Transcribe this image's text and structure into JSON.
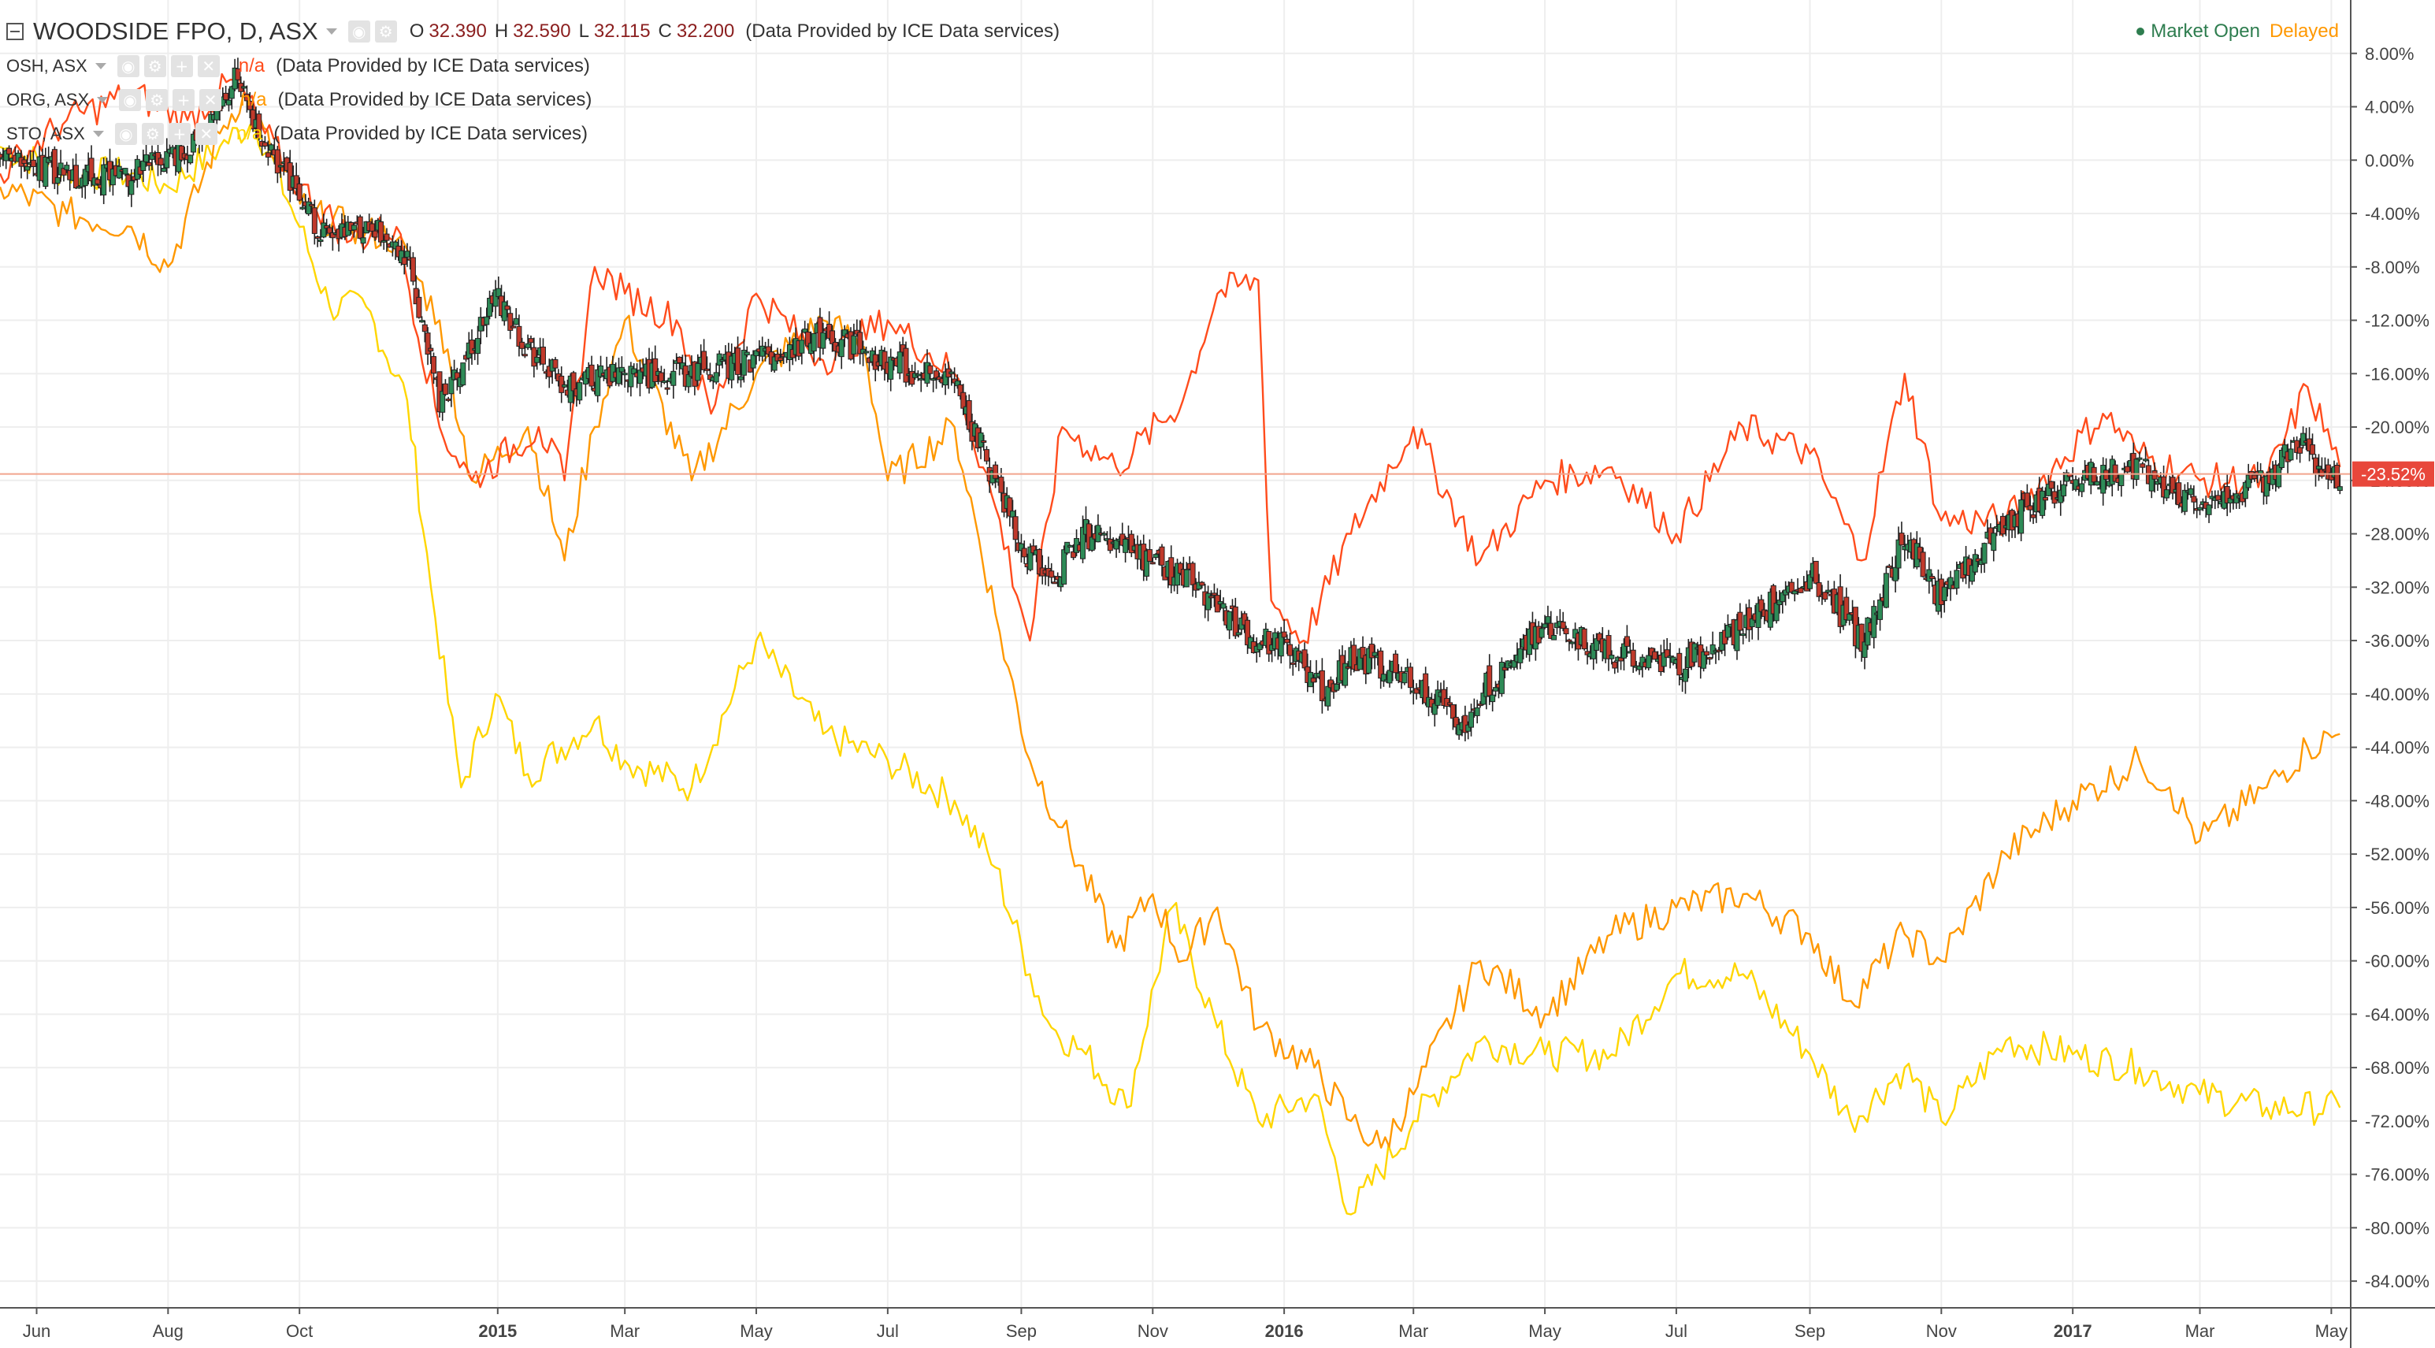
{
  "header": {
    "title": "WOODSIDE FPO, D, ASX",
    "ohlc": {
      "o_label": "O",
      "o": "32.390",
      "h_label": "H",
      "h": "32.590",
      "l_label": "L",
      "l": "32.115",
      "c_label": "C",
      "c": "32.200"
    },
    "provider": "(Data Provided by ICE Data services)",
    "status_open": "Market Open",
    "status_delayed": "Delayed"
  },
  "overlays": [
    {
      "label": "OSH, ASX",
      "value": "n/a",
      "provider": "(Data Provided by ICE Data services)",
      "color": "#ff4c1c"
    },
    {
      "label": "ORG, ASX",
      "value": "n/a",
      "provider": "(Data Provided by ICE Data services)",
      "color": "#ff9800"
    },
    {
      "label": "STO, ASX",
      "value": "n/a",
      "provider": "(Data Provided by ICE Data services)",
      "color": "#ffd600"
    }
  ],
  "price_tag": "-23.52%",
  "colors": {
    "up": "#2e8b57",
    "down": "#c0392b",
    "grid": "#eeeeee",
    "axis": "#555555",
    "tag": "#e8473b"
  },
  "chart_data": {
    "type": "line",
    "yscale": "percent change",
    "ylim": [
      -86,
      12
    ],
    "xlim": [
      "2014-05-15",
      "2017-05-10"
    ],
    "y_ticks": [
      "8.00%",
      "4.00%",
      "0.00%",
      "-4.00%",
      "-8.00%",
      "-12.00%",
      "-16.00%",
      "-20.00%",
      "-24.00%",
      "-28.00%",
      "-32.00%",
      "-36.00%",
      "-40.00%",
      "-44.00%",
      "-48.00%",
      "-52.00%",
      "-56.00%",
      "-60.00%",
      "-64.00%",
      "-68.00%",
      "-72.00%",
      "-76.00%",
      "-80.00%",
      "-84.00%"
    ],
    "x_ticks": [
      {
        "label": "Jun",
        "date": "2014-06-01",
        "bold": false
      },
      {
        "label": "Aug",
        "date": "2014-08-01",
        "bold": false
      },
      {
        "label": "Oct",
        "date": "2014-10-01",
        "bold": false
      },
      {
        "label": "2015",
        "date": "2015-01-01",
        "bold": true
      },
      {
        "label": "Mar",
        "date": "2015-03-01",
        "bold": false
      },
      {
        "label": "May",
        "date": "2015-05-01",
        "bold": false
      },
      {
        "label": "Jul",
        "date": "2015-07-01",
        "bold": false
      },
      {
        "label": "Sep",
        "date": "2015-09-01",
        "bold": false
      },
      {
        "label": "Nov",
        "date": "2015-11-01",
        "bold": false
      },
      {
        "label": "2016",
        "date": "2016-01-01",
        "bold": true
      },
      {
        "label": "Mar",
        "date": "2016-03-01",
        "bold": false
      },
      {
        "label": "May",
        "date": "2016-05-01",
        "bold": false
      },
      {
        "label": "Jul",
        "date": "2016-07-01",
        "bold": false
      },
      {
        "label": "Sep",
        "date": "2016-09-01",
        "bold": false
      },
      {
        "label": "Nov",
        "date": "2016-11-01",
        "bold": false
      },
      {
        "label": "2017",
        "date": "2017-01-01",
        "bold": true
      },
      {
        "label": "Mar",
        "date": "2017-03-01",
        "bold": false
      },
      {
        "label": "May",
        "date": "2017-05-01",
        "bold": false
      }
    ],
    "current_value": -23.52,
    "series": [
      {
        "name": "WOODSIDE FPO",
        "kind": "candles",
        "color_up": "#2e8b57",
        "color_down": "#c0392b",
        "points": [
          [
            "2014-05-15",
            0
          ],
          [
            "2014-06-15",
            -1
          ],
          [
            "2014-07-15",
            -1
          ],
          [
            "2014-08-10",
            1
          ],
          [
            "2014-08-25",
            4
          ],
          [
            "2014-09-01",
            6
          ],
          [
            "2014-09-15",
            1
          ],
          [
            "2014-10-01",
            -3
          ],
          [
            "2014-10-15",
            -6
          ],
          [
            "2014-11-01",
            -5
          ],
          [
            "2014-11-20",
            -7
          ],
          [
            "2014-12-05",
            -18
          ],
          [
            "2014-12-20",
            -14
          ],
          [
            "2014-12-31",
            -10
          ],
          [
            "2015-01-15",
            -14
          ],
          [
            "2015-02-01",
            -17
          ],
          [
            "2015-03-01",
            -16
          ],
          [
            "2015-04-01",
            -16
          ],
          [
            "2015-05-01",
            -15
          ],
          [
            "2015-06-01",
            -13
          ],
          [
            "2015-07-01",
            -15
          ],
          [
            "2015-08-01",
            -17
          ],
          [
            "2015-08-20",
            -24
          ],
          [
            "2015-09-01",
            -29
          ],
          [
            "2015-09-15",
            -31
          ],
          [
            "2015-10-01",
            -28
          ],
          [
            "2015-11-01",
            -30
          ],
          [
            "2015-12-01",
            -33
          ],
          [
            "2015-12-15",
            -36
          ],
          [
            "2016-01-01",
            -36
          ],
          [
            "2016-01-20",
            -40
          ],
          [
            "2016-02-01",
            -37
          ],
          [
            "2016-03-01",
            -39
          ],
          [
            "2016-03-25",
            -42
          ],
          [
            "2016-04-01",
            -40
          ],
          [
            "2016-05-01",
            -35
          ],
          [
            "2016-06-01",
            -37
          ],
          [
            "2016-07-01",
            -38
          ],
          [
            "2016-08-01",
            -35
          ],
          [
            "2016-09-01",
            -31
          ],
          [
            "2016-09-25",
            -36
          ],
          [
            "2016-10-15",
            -28
          ],
          [
            "2016-11-01",
            -33
          ],
          [
            "2016-12-01",
            -27
          ],
          [
            "2017-01-01",
            -24
          ],
          [
            "2017-02-01",
            -23
          ],
          [
            "2017-03-01",
            -26
          ],
          [
            "2017-04-01",
            -24
          ],
          [
            "2017-04-15",
            -21
          ],
          [
            "2017-05-01",
            -24
          ],
          [
            "2017-05-05",
            -23.5
          ]
        ]
      },
      {
        "name": "OSH, ASX",
        "kind": "line",
        "color": "#ff4c1c",
        "points": [
          [
            "2014-05-15",
            -1
          ],
          [
            "2014-06-15",
            3
          ],
          [
            "2014-07-15",
            5
          ],
          [
            "2014-08-10",
            3
          ],
          [
            "2014-09-01",
            6
          ],
          [
            "2014-09-15",
            2
          ],
          [
            "2014-10-01",
            -2
          ],
          [
            "2014-10-25",
            -6
          ],
          [
            "2014-11-15",
            -5
          ],
          [
            "2014-12-05",
            -20
          ],
          [
            "2014-12-20",
            -24
          ],
          [
            "2015-01-20",
            -20
          ],
          [
            "2015-02-01",
            -24
          ],
          [
            "2015-02-15",
            -8
          ],
          [
            "2015-03-01",
            -10
          ],
          [
            "2015-03-25",
            -12
          ],
          [
            "2015-04-10",
            -19
          ],
          [
            "2015-05-01",
            -10
          ],
          [
            "2015-06-01",
            -15
          ],
          [
            "2015-07-01",
            -12
          ],
          [
            "2015-08-01",
            -16
          ],
          [
            "2015-08-20",
            -26
          ],
          [
            "2015-09-05",
            -36
          ],
          [
            "2015-09-20",
            -20
          ],
          [
            "2015-10-15",
            -23
          ],
          [
            "2015-11-15",
            -18
          ],
          [
            "2015-12-01",
            -10
          ],
          [
            "2015-12-20",
            -9
          ],
          [
            "2015-12-26",
            -33
          ],
          [
            "2016-01-10",
            -36
          ],
          [
            "2016-02-01",
            -28
          ],
          [
            "2016-03-01",
            -20
          ],
          [
            "2016-04-01",
            -30
          ],
          [
            "2016-05-01",
            -24
          ],
          [
            "2016-06-01",
            -23
          ],
          [
            "2016-07-01",
            -28
          ],
          [
            "2016-08-01",
            -20
          ],
          [
            "2016-09-01",
            -22
          ],
          [
            "2016-09-25",
            -30
          ],
          [
            "2016-10-15",
            -16
          ],
          [
            "2016-11-01",
            -27
          ],
          [
            "2016-12-01",
            -27
          ],
          [
            "2017-01-15",
            -19
          ],
          [
            "2017-02-01",
            -22
          ],
          [
            "2017-03-01",
            -24
          ],
          [
            "2017-04-01",
            -24
          ],
          [
            "2017-04-20",
            -17
          ],
          [
            "2017-05-05",
            -23
          ]
        ]
      },
      {
        "name": "ORG, ASX",
        "kind": "line",
        "color": "#ff9800",
        "points": [
          [
            "2014-05-15",
            -2
          ],
          [
            "2014-06-15",
            -4
          ],
          [
            "2014-07-15",
            -5
          ],
          [
            "2014-08-01",
            -8
          ],
          [
            "2014-08-25",
            2
          ],
          [
            "2014-09-05",
            5
          ],
          [
            "2014-09-20",
            0
          ],
          [
            "2014-10-05",
            -4
          ],
          [
            "2014-10-25",
            -5
          ],
          [
            "2014-11-15",
            -6
          ],
          [
            "2014-12-05",
            -12
          ],
          [
            "2014-12-20",
            -24
          ],
          [
            "2015-01-15",
            -20
          ],
          [
            "2015-02-01",
            -30
          ],
          [
            "2015-02-15",
            -20
          ],
          [
            "2015-03-01",
            -12
          ],
          [
            "2015-04-01",
            -24
          ],
          [
            "2015-05-01",
            -16
          ],
          [
            "2015-06-01",
            -12
          ],
          [
            "2015-06-20",
            -14
          ],
          [
            "2015-07-01",
            -24
          ],
          [
            "2015-08-01",
            -20
          ],
          [
            "2015-08-20",
            -34
          ],
          [
            "2015-09-05",
            -45
          ],
          [
            "2015-09-20",
            -50
          ],
          [
            "2015-10-15",
            -59
          ],
          [
            "2015-11-01",
            -55
          ],
          [
            "2015-11-15",
            -60
          ],
          [
            "2015-12-01",
            -56
          ],
          [
            "2015-12-20",
            -65
          ],
          [
            "2016-01-15",
            -68
          ],
          [
            "2016-02-01",
            -72
          ],
          [
            "2016-02-15",
            -74
          ],
          [
            "2016-03-01",
            -70
          ],
          [
            "2016-04-01",
            -60
          ],
          [
            "2016-05-01",
            -64
          ],
          [
            "2016-06-01",
            -58
          ],
          [
            "2016-07-01",
            -56
          ],
          [
            "2016-08-01",
            -55
          ],
          [
            "2016-09-01",
            -58
          ],
          [
            "2016-09-20",
            -63
          ],
          [
            "2016-10-15",
            -58
          ],
          [
            "2016-11-01",
            -60
          ],
          [
            "2016-12-01",
            -52
          ],
          [
            "2017-01-01",
            -48
          ],
          [
            "2017-02-01",
            -45
          ],
          [
            "2017-02-15",
            -47
          ],
          [
            "2017-03-01",
            -51
          ],
          [
            "2017-04-01",
            -47
          ],
          [
            "2017-04-20",
            -44
          ],
          [
            "2017-05-05",
            -43
          ]
        ]
      },
      {
        "name": "STO, ASX",
        "kind": "line",
        "color": "#ffd600",
        "points": [
          [
            "2014-05-15",
            1
          ],
          [
            "2014-06-15",
            -1
          ],
          [
            "2014-07-15",
            -1
          ],
          [
            "2014-08-01",
            -2
          ],
          [
            "2014-08-25",
            1
          ],
          [
            "2014-09-10",
            3
          ],
          [
            "2014-10-01",
            -5
          ],
          [
            "2014-10-15",
            -11
          ],
          [
            "2014-11-01",
            -11
          ],
          [
            "2014-11-20",
            -18
          ],
          [
            "2014-12-01",
            -32
          ],
          [
            "2014-12-15",
            -47
          ],
          [
            "2014-12-31",
            -40
          ],
          [
            "2015-01-15",
            -46
          ],
          [
            "2015-02-15",
            -42
          ],
          [
            "2015-03-01",
            -45
          ],
          [
            "2015-04-01",
            -47
          ],
          [
            "2015-05-01",
            -36
          ],
          [
            "2015-06-01",
            -43
          ],
          [
            "2015-07-01",
            -45
          ],
          [
            "2015-08-01",
            -48
          ],
          [
            "2015-08-20",
            -53
          ],
          [
            "2015-09-05",
            -61
          ],
          [
            "2015-09-15",
            -65
          ],
          [
            "2015-10-01",
            -67
          ],
          [
            "2015-10-20",
            -71
          ],
          [
            "2015-11-10",
            -56
          ],
          [
            "2015-12-01",
            -65
          ],
          [
            "2015-12-20",
            -72
          ],
          [
            "2016-01-15",
            -70
          ],
          [
            "2016-02-01",
            -79
          ],
          [
            "2016-03-01",
            -72
          ],
          [
            "2016-04-01",
            -66
          ],
          [
            "2016-05-01",
            -67
          ],
          [
            "2016-06-01",
            -67
          ],
          [
            "2016-07-01",
            -61
          ],
          [
            "2016-08-01",
            -61
          ],
          [
            "2016-09-01",
            -67
          ],
          [
            "2016-09-20",
            -72
          ],
          [
            "2016-10-15",
            -68
          ],
          [
            "2016-11-01",
            -72
          ],
          [
            "2016-12-01",
            -66
          ],
          [
            "2017-01-01",
            -67
          ],
          [
            "2017-02-01",
            -68
          ],
          [
            "2017-03-01",
            -70
          ],
          [
            "2017-04-01",
            -71
          ],
          [
            "2017-05-05",
            -71
          ]
        ]
      }
    ]
  }
}
